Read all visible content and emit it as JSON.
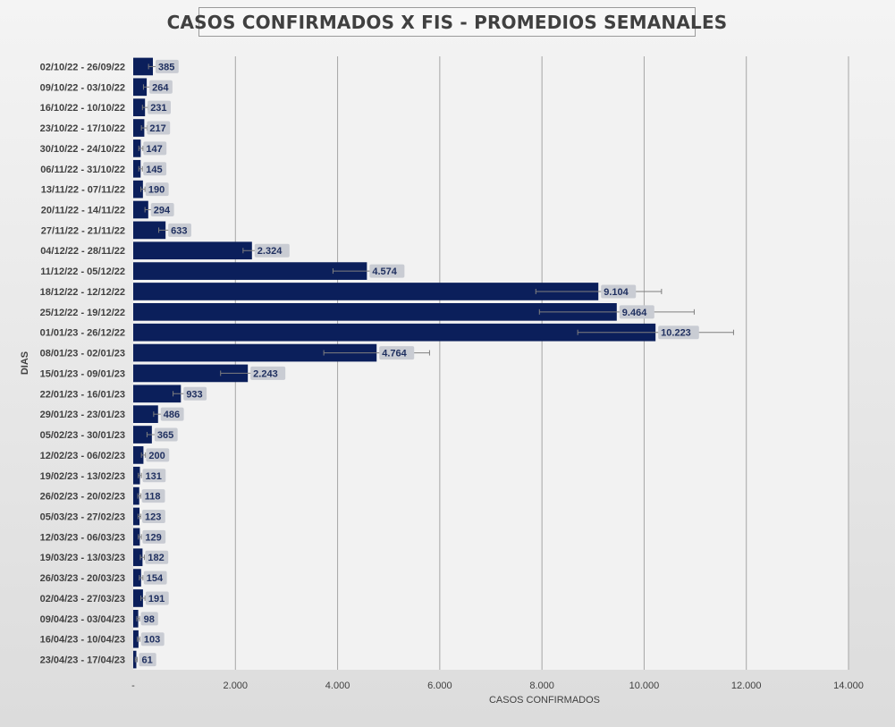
{
  "chart_data": {
    "type": "bar",
    "orientation": "horizontal",
    "title": "CASOS CONFIRMADOS X FIS - PROMEDIOS SEMANALES",
    "xlabel": "CASOS CONFIRMADOS",
    "ylabel": "DIAS",
    "xlim": [
      0,
      14000
    ],
    "x_ticks": [
      "-",
      "2.000",
      "4.000",
      "6.000",
      "8.000",
      "10.000",
      "12.000",
      "14.000"
    ],
    "x_tick_values": [
      0,
      2000,
      4000,
      6000,
      8000,
      10000,
      12000,
      14000
    ],
    "grid": "vertical major gridlines",
    "bar_color": "#0b1f5b",
    "label_bg_color": "#c9ccd3",
    "categories": [
      "02/10/22 - 26/09/22",
      "09/10/22 - 03/10/22",
      "16/10/22 - 10/10/22",
      "23/10/22 - 17/10/22",
      "30/10/22 - 24/10/22",
      "06/11/22 - 31/10/22",
      "13/11/22 - 07/11/22",
      "20/11/22 - 14/11/22",
      "27/11/22 - 21/11/22",
      "04/12/22 - 28/11/22",
      "11/12/22 - 05/12/22",
      "18/12/22 - 12/12/22",
      "25/12/22 - 19/12/22",
      "01/01/23 - 26/12/22",
      "08/01/23 - 02/01/23",
      "15/01/23 - 09/01/23",
      "22/01/23 - 16/01/23",
      "29/01/23 - 23/01/23",
      "05/02/23 - 30/01/23",
      "12/02/23 - 06/02/23",
      "19/02/23 - 13/02/23",
      "26/02/23 - 20/02/23",
      "05/03/23 - 27/02/23",
      "12/03/23 - 06/03/23",
      "19/03/23 - 13/03/23",
      "26/03/23 - 20/03/23",
      "02/04/23 - 27/03/23",
      "09/04/23 - 03/04/23",
      "16/04/23 - 10/04/23",
      "23/04/23 - 17/04/23"
    ],
    "values": [
      385,
      264,
      231,
      217,
      147,
      145,
      190,
      294,
      633,
      2324,
      4574,
      9104,
      9464,
      10223,
      4764,
      2243,
      933,
      486,
      365,
      200,
      131,
      118,
      123,
      129,
      182,
      154,
      191,
      98,
      103,
      61
    ],
    "value_labels": [
      "385",
      "264",
      "231",
      "217",
      "147",
      "145",
      "190",
      "294",
      "633",
      "2.324",
      "4.574",
      "9.104",
      "9.464",
      "10.223",
      "4.764",
      "2.243",
      "933",
      "486",
      "365",
      "200",
      "131",
      "118",
      "123",
      "129",
      "182",
      "154",
      "191",
      "98",
      "103",
      "61"
    ],
    "error_bars": [
      [
        300,
        470
      ],
      [
        200,
        330
      ],
      [
        180,
        290
      ],
      [
        160,
        270
      ],
      [
        110,
        190
      ],
      [
        110,
        180
      ],
      [
        150,
        230
      ],
      [
        230,
        360
      ],
      [
        500,
        780
      ],
      [
        2150,
        2490
      ],
      [
        3910,
        5240
      ],
      [
        7880,
        10340
      ],
      [
        7950,
        10980
      ],
      [
        8700,
        11750
      ],
      [
        3730,
        5800
      ],
      [
        1710,
        2780
      ],
      [
        780,
        1090
      ],
      [
        400,
        570
      ],
      [
        270,
        460
      ],
      [
        160,
        240
      ],
      [
        100,
        160
      ],
      [
        90,
        150
      ],
      [
        95,
        150
      ],
      [
        100,
        160
      ],
      [
        140,
        220
      ],
      [
        120,
        190
      ],
      [
        150,
        230
      ],
      [
        70,
        125
      ],
      [
        80,
        130
      ],
      [
        40,
        80
      ]
    ]
  }
}
